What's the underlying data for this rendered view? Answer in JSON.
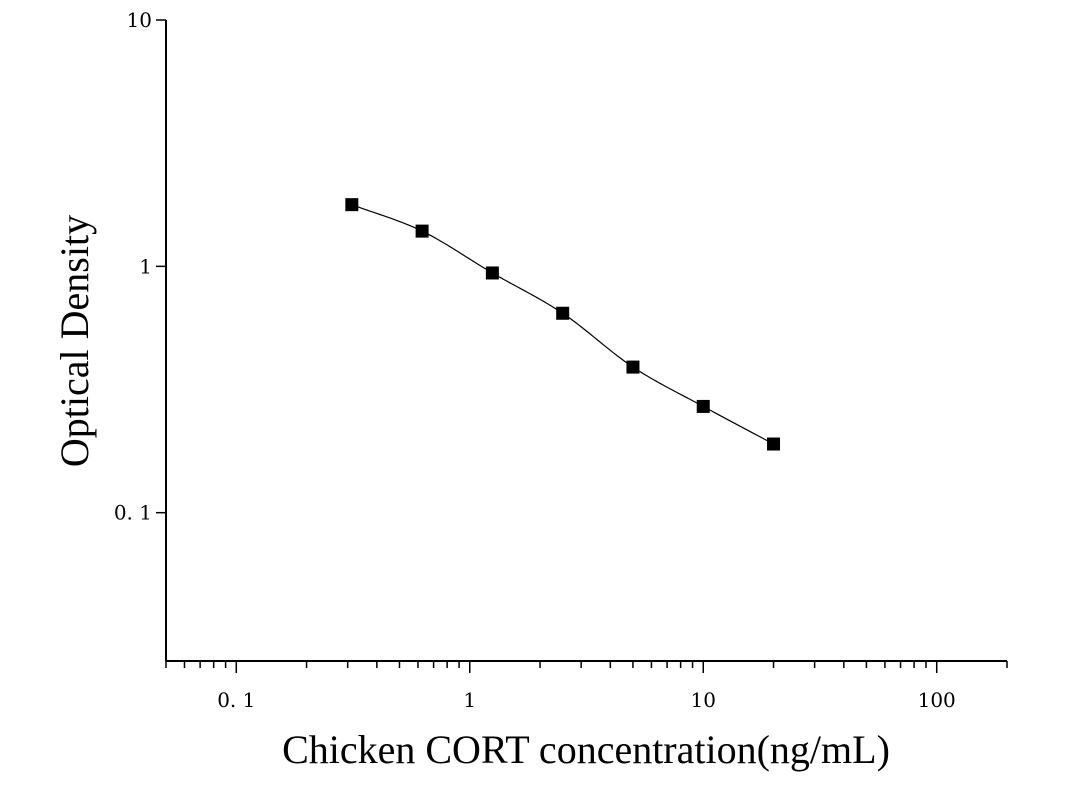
{
  "chart_data": {
    "type": "scatter",
    "title": "",
    "xlabel": "Chicken CORT concentration(ng/mL)",
    "ylabel": "Optical Density",
    "xscale": "log",
    "yscale": "log",
    "xlim": [
      0.05,
      200
    ],
    "ylim": [
      0.025,
      10
    ],
    "x_ticks": [
      {
        "value": 0.1,
        "label": "0. 1"
      },
      {
        "value": 1,
        "label": "1"
      },
      {
        "value": 10,
        "label": "10"
      },
      {
        "value": 100,
        "label": "100"
      }
    ],
    "y_ticks": [
      {
        "value": 0.1,
        "label": "0. 1"
      },
      {
        "value": 1,
        "label": "1"
      },
      {
        "value": 10,
        "label": "10"
      }
    ],
    "grid": false,
    "legend": "none",
    "series": [
      {
        "x": [
          0.3125,
          0.625,
          1.25,
          2.5,
          5,
          10,
          20
        ],
        "y": [
          1.78,
          1.39,
          0.94,
          0.645,
          0.39,
          0.27,
          0.19
        ],
        "marker": "square",
        "line": "smooth-fit",
        "color": "#000000"
      }
    ]
  }
}
